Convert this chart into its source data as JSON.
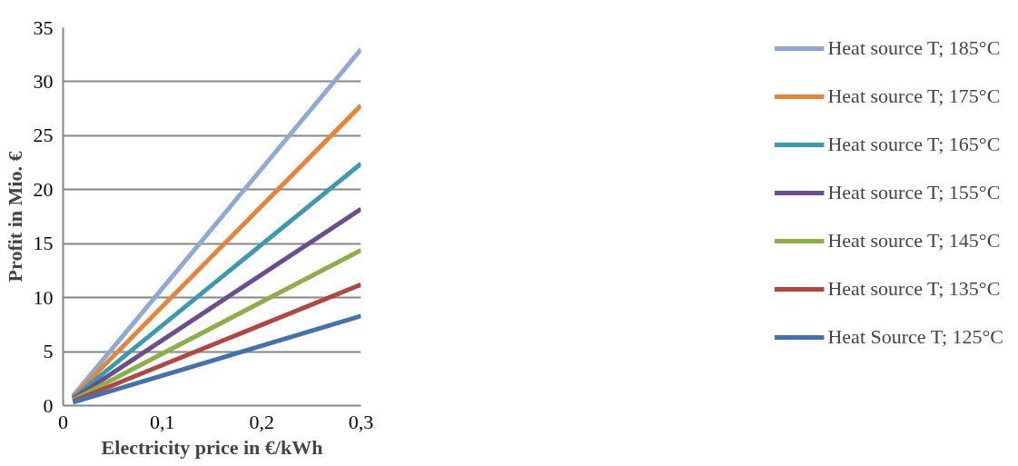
{
  "chart_data": {
    "type": "line",
    "xlabel": "Electricity price in €/kWh",
    "ylabel": "Profit in Mio. €",
    "x": [
      0.01,
      0.3
    ],
    "series": [
      {
        "name": "Heat source T; 185°C",
        "color": "#8eaad4",
        "values": [
          0.9,
          33.0
        ]
      },
      {
        "name": "Heat source T; 175°C",
        "color": "#e6843a",
        "values": [
          0.8,
          27.8
        ]
      },
      {
        "name": "Heat source T; 165°C",
        "color": "#3c9aaf",
        "values": [
          0.7,
          22.4
        ]
      },
      {
        "name": "Heat source T; 155°C",
        "color": "#6a4f8f",
        "values": [
          0.6,
          18.2
        ]
      },
      {
        "name": "Heat source T; 145°C",
        "color": "#8eae48",
        "values": [
          0.5,
          14.4
        ]
      },
      {
        "name": "Heat source T; 135°C",
        "color": "#b24641",
        "values": [
          0.4,
          11.2
        ]
      },
      {
        "name": "Heat Source T; 125°C",
        "color": "#4472ad",
        "values": [
          0.3,
          8.3
        ]
      }
    ],
    "xlim": [
      0,
      0.3
    ],
    "ylim": [
      0,
      35
    ],
    "xticks": [
      0,
      {
        "value": 0.1,
        "label": "0,1"
      },
      {
        "value": 0.2,
        "label": "0,2"
      },
      {
        "value": 0.3,
        "label": "0,3"
      }
    ],
    "yticks": [
      0,
      5,
      10,
      15,
      20,
      25,
      30,
      35
    ],
    "grid": "y",
    "legend": "right",
    "marker": "none",
    "line_style": "solid"
  }
}
